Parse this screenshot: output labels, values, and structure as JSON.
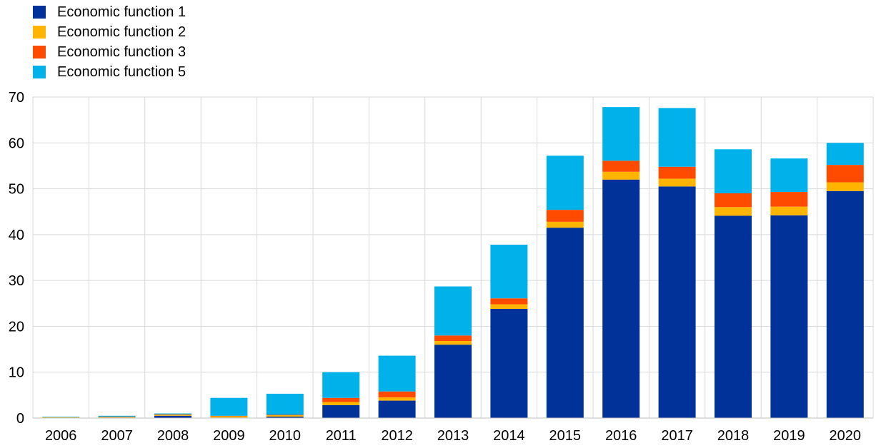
{
  "chart_data": {
    "type": "bar",
    "stacked": true,
    "title": "",
    "xlabel": "",
    "ylabel": "",
    "ylim": [
      0,
      70
    ],
    "yticks": [
      0,
      10,
      20,
      30,
      40,
      50,
      60,
      70
    ],
    "grid": true,
    "legend_position": "top-left",
    "categories": [
      "2006",
      "2007",
      "2008",
      "2009",
      "2010",
      "2011",
      "2012",
      "2013",
      "2014",
      "2015",
      "2016",
      "2017",
      "2018",
      "2019",
      "2020"
    ],
    "series": [
      {
        "name": "Economic function 1",
        "color": "#003299",
        "values": [
          0.1,
          0.1,
          0.5,
          0.1,
          0.3,
          2.8,
          3.8,
          16.0,
          23.8,
          41.5,
          52.0,
          50.5,
          44.1,
          44.2,
          49.5
        ]
      },
      {
        "name": "Economic function 2",
        "color": "#ffb400",
        "values": [
          0.1,
          0.1,
          0.2,
          0.3,
          0.3,
          0.7,
          0.7,
          0.8,
          1.0,
          1.3,
          1.7,
          1.7,
          1.9,
          1.9,
          1.9
        ]
      },
      {
        "name": "Economic function 3",
        "color": "#ff4b00",
        "values": [
          0.0,
          0.1,
          0.1,
          0.1,
          0.1,
          0.9,
          1.3,
          1.2,
          1.3,
          2.6,
          2.4,
          2.6,
          3.0,
          3.2,
          3.8
        ]
      },
      {
        "name": "Economic function 5",
        "color": "#00b1ea",
        "values": [
          0.1,
          0.2,
          0.2,
          3.9,
          4.6,
          5.6,
          7.8,
          10.7,
          11.7,
          11.8,
          11.7,
          12.8,
          9.6,
          7.3,
          4.8
        ]
      }
    ]
  }
}
